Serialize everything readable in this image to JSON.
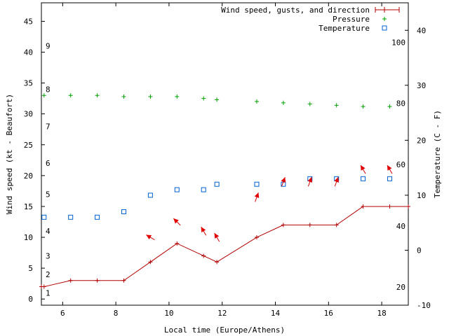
{
  "chart_data": {
    "type": "line",
    "title": "",
    "xlabel": "Local time (Europe/Athens)",
    "ylabel_left": "Wind speed (kt - Beaufort)",
    "ylabel_right": "Temperature (C - F)",
    "xlim": [
      5.2,
      19.0
    ],
    "ylim": [
      -1,
      48
    ],
    "y2lim": [
      -10,
      45
    ],
    "xticks": [
      6,
      8,
      10,
      12,
      14,
      16,
      18
    ],
    "yticks": [
      0,
      5,
      10,
      15,
      20,
      25,
      30,
      35,
      40,
      45
    ],
    "y2ticks": [
      -10,
      0,
      10,
      20,
      30,
      40
    ],
    "beaufort_labels": [
      {
        "label": "1",
        "kt": 1
      },
      {
        "label": "2",
        "kt": 4
      },
      {
        "label": "3",
        "kt": 7
      },
      {
        "label": "4",
        "kt": 11
      },
      {
        "label": "5",
        "kt": 17
      },
      {
        "label": "6",
        "kt": 22
      },
      {
        "label": "7",
        "kt": 28
      },
      {
        "label": "8",
        "kt": 34
      },
      {
        "label": "9",
        "kt": 41
      }
    ],
    "fahrenheit_labels": [
      {
        "label": "20",
        "c": -6.7
      },
      {
        "label": "40",
        "c": 4.4
      },
      {
        "label": "60",
        "c": 15.6
      },
      {
        "label": "80",
        "c": 26.7
      },
      {
        "label": "100",
        "c": 37.8
      }
    ],
    "legend": [
      {
        "label": "Wind speed, gusts, and direction",
        "color": "#b00000",
        "marker": "line-plus"
      },
      {
        "label": "Pressure",
        "color": "#00a000",
        "marker": "plus"
      },
      {
        "label": "Temperature",
        "color": "#0060d0",
        "marker": "square"
      }
    ],
    "series": [
      {
        "name": "Wind speed",
        "color": "#b00000",
        "x": [
          5.2,
          5.3,
          6.3,
          7.3,
          8.3,
          9.3,
          10.3,
          11.3,
          11.8,
          13.3,
          14.3,
          15.3,
          16.3,
          17.3,
          18.3,
          19.0
        ],
        "y": [
          2,
          2,
          3,
          3,
          3,
          6,
          9,
          7,
          6,
          10,
          12,
          12,
          12,
          15,
          15,
          15
        ]
      },
      {
        "name": "Pressure",
        "color": "#00a000",
        "x": [
          5.3,
          6.3,
          7.3,
          8.3,
          9.3,
          10.3,
          11.3,
          11.8,
          13.3,
          14.3,
          15.3,
          16.3,
          17.3,
          18.3
        ],
        "y": [
          33,
          33,
          33,
          32.8,
          32.8,
          32.8,
          32.5,
          32.3,
          32,
          31.8,
          31.6,
          31.4,
          31.2,
          31.2
        ]
      },
      {
        "name": "Temperature",
        "color": "#0060d0",
        "axis": "right",
        "x": [
          5.3,
          6.3,
          7.3,
          8.3,
          9.3,
          10.3,
          11.3,
          11.8,
          13.3,
          14.3,
          15.3,
          16.3,
          17.3,
          18.3
        ],
        "y": [
          6,
          6,
          6,
          7,
          10,
          11,
          11,
          12,
          12,
          12,
          13,
          13,
          13,
          13
        ]
      }
    ],
    "wind_arrows": [
      {
        "x": 9.3,
        "y": 10,
        "dir_deg": 300
      },
      {
        "x": 10.3,
        "y": 12.5,
        "dir_deg": 315
      },
      {
        "x": 11.3,
        "y": 11,
        "dir_deg": 330
      },
      {
        "x": 11.8,
        "y": 10,
        "dir_deg": 330
      },
      {
        "x": 13.3,
        "y": 16.5,
        "dir_deg": 20
      },
      {
        "x": 14.3,
        "y": 19,
        "dir_deg": 20
      },
      {
        "x": 15.3,
        "y": 19,
        "dir_deg": 20
      },
      {
        "x": 16.3,
        "y": 19,
        "dir_deg": 20
      },
      {
        "x": 17.3,
        "y": 21,
        "dir_deg": 330
      },
      {
        "x": 18.3,
        "y": 21,
        "dir_deg": 330
      }
    ]
  }
}
